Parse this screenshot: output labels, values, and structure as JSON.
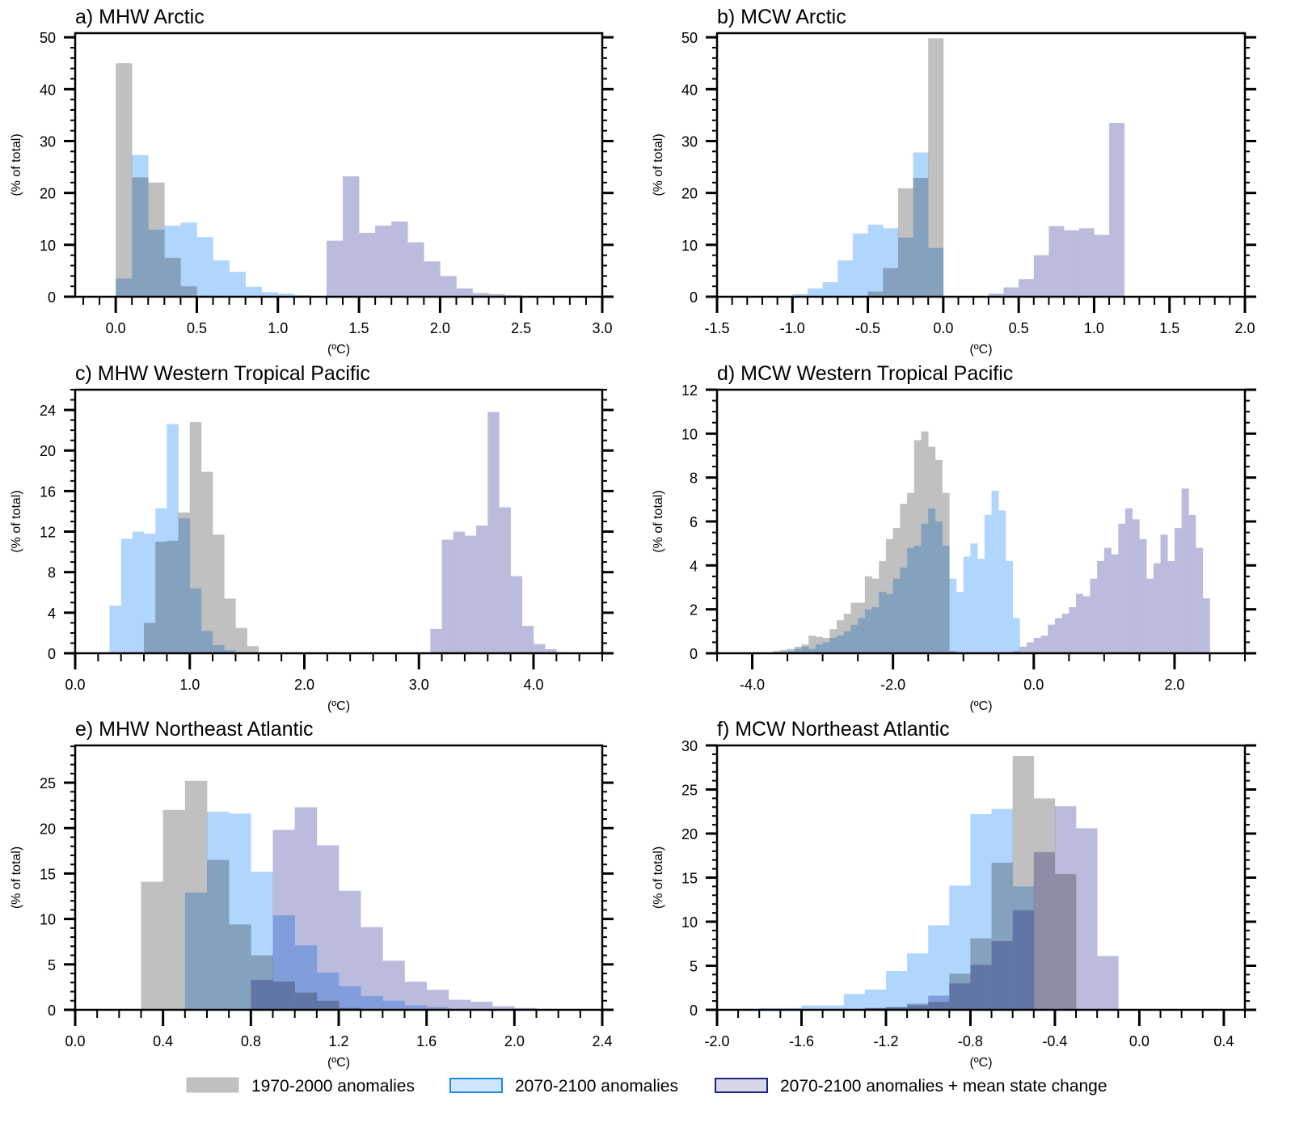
{
  "figure": {
    "legend": [
      {
        "label": "1970-2000 anomalies",
        "fill": "#c0c0c0",
        "stroke": "#c0c0c0"
      },
      {
        "label": "2070-2100 anomalies",
        "fill": "#cfe5fd",
        "stroke": "#1e88e5"
      },
      {
        "label": "2070-2100 anomalies + mean state change",
        "fill": "#d6d6e8",
        "stroke": "#1a237e"
      }
    ],
    "colors": {
      "past": "#c0c0c0",
      "future": "#b0d6fd",
      "future_mean": "#bbbbdd"
    }
  },
  "chart_data": [
    {
      "type": "bar",
      "id": "a",
      "title": "a) MHW Arctic",
      "xlabel": "(ºC)",
      "ylabel": "(% of total)",
      "xlim": [
        -0.25,
        3.0
      ],
      "ylim": [
        0,
        50.8
      ],
      "xticks": [
        0.0,
        0.5,
        1.0,
        1.5,
        2.0,
        2.5,
        3.0
      ],
      "xticklabels": [
        "0.0",
        "0.5",
        "1.0",
        "1.5",
        "2.0",
        "2.5",
        "3.0"
      ],
      "xminor": 0.1,
      "yticks": [
        0,
        10,
        20,
        30,
        40,
        50
      ],
      "yticklabels": [
        "0",
        "10",
        "20",
        "30",
        "40",
        "50"
      ],
      "yminor": 2,
      "bin_width": 0.1,
      "series": [
        {
          "name": "1970-2000 anomalies",
          "start": 0.0,
          "values": [
            45,
            23,
            22,
            7.5,
            2,
            0.2
          ]
        },
        {
          "name": "2070-2100 anomalies",
          "start": 0.0,
          "values": [
            3.5,
            27.3,
            12.9,
            13.7,
            14.3,
            11.5,
            7.0,
            4.8,
            1.9,
            0.9,
            0.6,
            0.3
          ]
        },
        {
          "name": "2070-2100 anomalies + mean state change",
          "start": 1.3,
          "values": [
            10.8,
            23.2,
            12.3,
            13.7,
            14.5,
            10.5,
            6.8,
            4.0,
            1.6,
            0.7,
            0.5,
            0.3
          ]
        }
      ]
    },
    {
      "type": "bar",
      "id": "b",
      "title": "b) MCW Arctic",
      "xlabel": "(ºC)",
      "ylabel": "(% of total)",
      "xlim": [
        -1.5,
        2.0
      ],
      "ylim": [
        0,
        50.8
      ],
      "xticks": [
        -1.5,
        -1.0,
        -0.5,
        0.0,
        0.5,
        1.0,
        1.5,
        2.0
      ],
      "xticklabels": [
        "-1.5",
        "-1.0",
        "-0.5",
        "0.0",
        "0.5",
        "1.0",
        "1.5",
        "2.0"
      ],
      "xminor": 0.1,
      "yticks": [
        0,
        10,
        20,
        30,
        40,
        50
      ],
      "yticklabels": [
        "0",
        "10",
        "20",
        "30",
        "40",
        "50"
      ],
      "yminor": 2,
      "bin_width": 0.1,
      "series": [
        {
          "name": "1970-2000 anomalies",
          "start": -0.5,
          "values": [
            1.0,
            5.5,
            20.9,
            22.9,
            49.8
          ]
        },
        {
          "name": "2070-2100 anomalies",
          "start": -1.0,
          "values": [
            0.5,
            1.6,
            2.8,
            7.0,
            12.2,
            13.9,
            13.2,
            11.4,
            27.8,
            9.4
          ]
        },
        {
          "name": "2070-2100 anomalies + mean state change",
          "start": 0.2,
          "values": [
            0.1,
            0.6,
            1.8,
            3.4,
            8.0,
            13.6,
            12.8,
            13.2,
            11.9,
            33.5
          ]
        }
      ]
    },
    {
      "type": "bar",
      "id": "c",
      "title": "c) MHW Western Tropical Pacific",
      "xlabel": "(ºC)",
      "ylabel": "(% of total)",
      "xlim": [
        0.0,
        4.6
      ],
      "ylim": [
        0,
        26
      ],
      "xticks": [
        0.0,
        1.0,
        2.0,
        3.0,
        4.0
      ],
      "xticklabels": [
        "0.0",
        "1.0",
        "2.0",
        "3.0",
        "4.0"
      ],
      "xminor": 0.2,
      "yticks": [
        0,
        4,
        8,
        12,
        16,
        20,
        24
      ],
      "yticklabels": [
        "0",
        "4",
        "8",
        "12",
        "16",
        "20",
        "24"
      ],
      "yminor": 1,
      "bin_width": 0.1,
      "series": [
        {
          "name": "1970-2000 anomalies",
          "start": 0.6,
          "values": [
            3.0,
            11.0,
            11.1,
            13.9,
            22.8,
            17.9,
            11.7,
            5.4,
            2.5,
            0.7
          ]
        },
        {
          "name": "2070-2100 anomalies",
          "start": 0.3,
          "values": [
            4.7,
            11.3,
            12.0,
            11.8,
            14.3,
            22.6,
            13.3,
            6.4,
            2.2,
            0.8,
            0.3
          ]
        },
        {
          "name": "2070-2100 anomalies + mean state change",
          "start": 3.1,
          "values": [
            2.4,
            11.2,
            12.0,
            11.6,
            12.6,
            23.8,
            14.4,
            7.6,
            2.7,
            0.9,
            0.4,
            0.1
          ]
        }
      ]
    },
    {
      "type": "bar",
      "id": "d",
      "title": "d) MCW Western Tropical Pacific",
      "xlabel": "(ºC)",
      "ylabel": "(% of total)",
      "xlim": [
        -4.5,
        3.0
      ],
      "ylim": [
        0,
        12
      ],
      "xticks": [
        -4.0,
        -2.0,
        0.0,
        2.0
      ],
      "xticklabels": [
        "-4.0",
        "-2.0",
        "0.0",
        "2.0"
      ],
      "xminor": 0.5,
      "yticks": [
        0,
        2,
        4,
        6,
        8,
        10,
        12
      ],
      "yticklabels": [
        "0",
        "2",
        "4",
        "6",
        "8",
        "10",
        "12"
      ],
      "yminor": 0.5,
      "bin_width": 0.1,
      "series": [
        {
          "name": "1970-2000 anomalies",
          "start": -3.7,
          "values": [
            0.1,
            0.15,
            0.2,
            0.3,
            0.4,
            0.8,
            0.75,
            0.7,
            1.1,
            1.5,
            1.8,
            2.3,
            2.3,
            3.5,
            3.4,
            4.2,
            5.2,
            5.7,
            6.8,
            7.3,
            9.7,
            10.1,
            9.4,
            8.8,
            7.3,
            0.1,
            0.05
          ]
        },
        {
          "name": "2070-2100 anomalies",
          "start": -3.7,
          "values": [
            0.05,
            0.05,
            0.1,
            0.2,
            0.3,
            0.2,
            0.4,
            0.5,
            0.7,
            0.8,
            1.0,
            1.3,
            1.6,
            2.0,
            2.1,
            2.8,
            2.7,
            3.4,
            3.9,
            4.8,
            4.9,
            5.9,
            6.6,
            6.0,
            4.9,
            3.4,
            2.8,
            4.4,
            5.0,
            4.3,
            6.3,
            7.4,
            6.5,
            4.2,
            1.6
          ]
        },
        {
          "name": "2070-2100 anomalies + mean state change",
          "start": -0.3,
          "values": [
            0.1,
            0.3,
            0.5,
            0.7,
            0.8,
            1.3,
            1.6,
            1.8,
            2.1,
            2.7,
            2.6,
            3.4,
            4.2,
            4.8,
            4.5,
            5.9,
            6.6,
            6.1,
            5.2,
            3.4,
            4.1,
            5.4,
            4.2,
            5.7,
            7.5,
            6.3,
            4.8,
            2.5
          ]
        }
      ]
    },
    {
      "type": "bar",
      "id": "e",
      "title": "e) MHW Northeast Atlantic",
      "xlabel": "(ºC)",
      "ylabel": "(% of total)",
      "xlim": [
        0.0,
        2.4
      ],
      "ylim": [
        0,
        29.1
      ],
      "xticks": [
        0.0,
        0.4,
        0.8,
        1.2,
        1.6,
        2.0,
        2.4
      ],
      "xticklabels": [
        "0.0",
        "0.4",
        "0.8",
        "1.2",
        "1.6",
        "2.0",
        "2.4"
      ],
      "xminor": 0.1,
      "yticks": [
        0,
        5,
        10,
        15,
        20,
        25
      ],
      "yticklabels": [
        "0",
        "5",
        "10",
        "15",
        "20",
        "25"
      ],
      "yminor": 1,
      "bin_width": 0.1,
      "series": [
        {
          "name": "1970-2000 anomalies",
          "start": 0.3,
          "values": [
            14.1,
            22.0,
            25.2,
            16.5,
            9.4,
            6.0,
            3.1,
            1.9,
            1.0,
            0.2,
            0.1
          ]
        },
        {
          "name": "2070-2100 anomalies",
          "start": 0.5,
          "values": [
            12.9,
            21.8,
            21.6,
            15.2,
            10.4,
            7.1,
            4.1,
            2.6,
            1.5,
            1.0,
            0.5,
            0.3,
            0.1
          ]
        },
        {
          "name": "2070-2100 anomalies + mean state change",
          "start": 0.8,
          "values": [
            3.3,
            19.8,
            22.3,
            18.1,
            13.1,
            9.1,
            5.4,
            3.1,
            2.2,
            1.1,
            0.9,
            0.4,
            0.2,
            0.1
          ]
        }
      ]
    },
    {
      "type": "bar",
      "id": "f",
      "title": "f) MCW Northeast Atlantic",
      "xlabel": "(ºC)",
      "ylabel": "(% of total)",
      "xlim": [
        -2.0,
        0.5
      ],
      "ylim": [
        0,
        30
      ],
      "xticks": [
        -2.0,
        -1.6,
        -1.2,
        -0.8,
        -0.4,
        0.0,
        0.4
      ],
      "xticklabels": [
        "-2.0",
        "-1.6",
        "-1.2",
        "-0.8",
        "-0.4",
        "0.0",
        "0.4"
      ],
      "xminor": 0.1,
      "yticks": [
        0,
        5,
        10,
        15,
        20,
        25,
        30
      ],
      "yticklabels": [
        "0",
        "5",
        "10",
        "15",
        "20",
        "25",
        "30"
      ],
      "yminor": 1,
      "bin_width": 0.1,
      "series": [
        {
          "name": "1970-2000 anomalies",
          "start": -1.9,
          "values": [
            0.1,
            0.05,
            0.05,
            0.05,
            0.1,
            0.1,
            0.2,
            0.3,
            0.5,
            0.9,
            4.1,
            8.1,
            16.7,
            28.8,
            24.0,
            15.4
          ]
        },
        {
          "name": "2070-2100 anomalies",
          "start": -1.9,
          "values": [
            0.1,
            0.2,
            0.2,
            0.5,
            0.5,
            1.8,
            2.3,
            4.4,
            6.4,
            9.6,
            14.1,
            22.2,
            22.8,
            14.0,
            0.0,
            0.0
          ]
        },
        {
          "name": "2070-2100 anomalies + mean state change",
          "start": -1.9,
          "values": [
            0.0,
            0.0,
            0.0,
            0.0,
            0.1,
            0.1,
            0.2,
            0.3,
            0.7,
            1.6,
            3.0,
            5.1,
            7.8,
            11.3,
            17.9,
            23.1,
            20.6,
            6.1
          ]
        }
      ]
    }
  ]
}
